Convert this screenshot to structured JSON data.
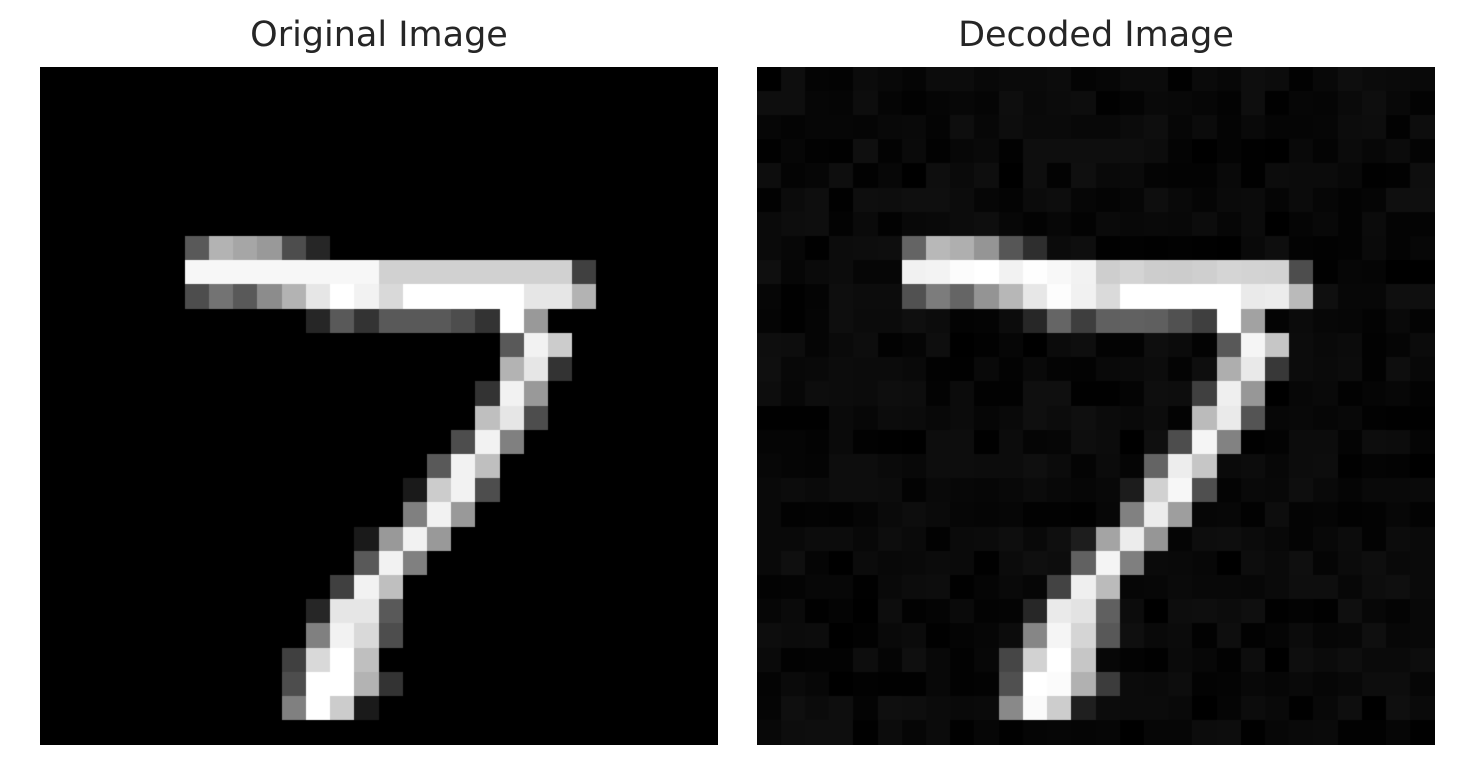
{
  "panels": [
    {
      "title": "Original Image",
      "image_description_name": "mnist-digit-seven-original"
    },
    {
      "title": "Decoded Image",
      "image_description_name": "mnist-digit-seven-decoded"
    }
  ],
  "colors": {
    "background": "#ffffff",
    "title": "#262626",
    "image_background": "#000000",
    "stroke": "#ffffff"
  }
}
